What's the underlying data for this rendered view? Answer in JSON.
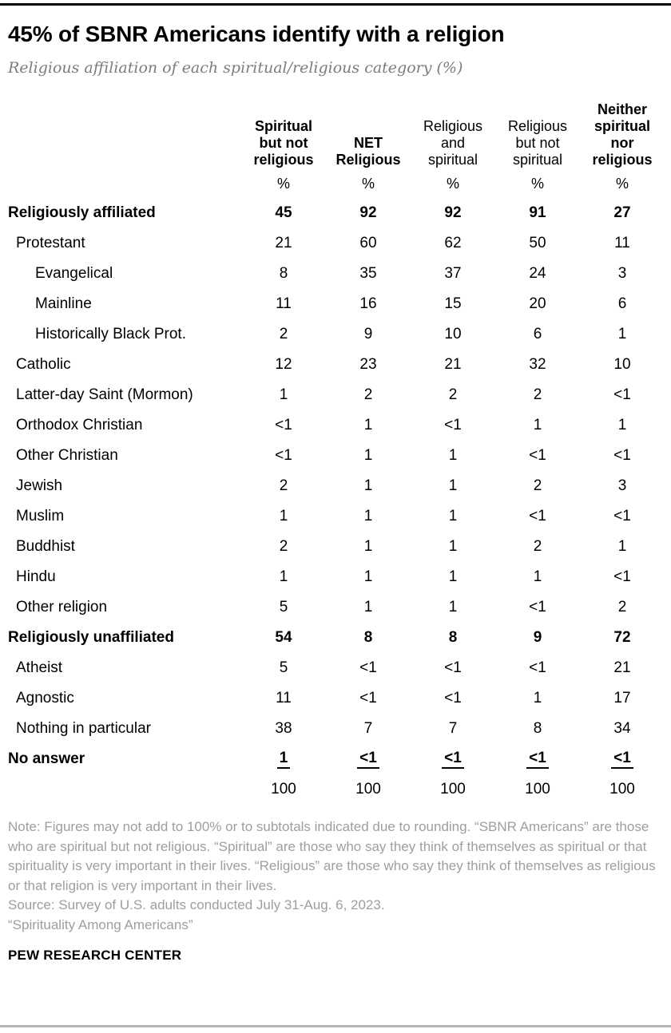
{
  "header": {
    "title": "45% of SBNR Americans identify with a religion",
    "subtitle": "Religious affiliation of each spiritual/religious category (%)"
  },
  "table": {
    "column_display": [
      {
        "label": "Spiritual\nbut not\nreligious",
        "bold": true
      },
      {
        "label": "NET\nReligious",
        "bold": true
      },
      {
        "label": "Religious\nand\nspiritual",
        "bold": false
      },
      {
        "label": "Religious\nbut not\nspiritual",
        "bold": false
      },
      {
        "label": "Neither\nspiritual\nnor\nreligious",
        "bold": true
      }
    ],
    "percent_symbol": "%"
  },
  "chart_data": {
    "type": "table",
    "title": "45% of SBNR Americans identify with a religion",
    "subtitle": "Religious affiliation of each spiritual/religious category (%)",
    "unit": "%",
    "columns": [
      "Spiritual but not religious",
      "NET Religious",
      "Religious and spiritual",
      "Religious but not spiritual",
      "Neither spiritual nor religious"
    ],
    "rows": [
      {
        "label": "Religiously affiliated",
        "indent": 0,
        "bold": true,
        "underline": false,
        "values": [
          "45",
          "92",
          "92",
          "91",
          "27"
        ]
      },
      {
        "label": "Protestant",
        "indent": 1,
        "bold": false,
        "underline": false,
        "values": [
          "21",
          "60",
          "62",
          "50",
          "11"
        ]
      },
      {
        "label": "Evangelical",
        "indent": 2,
        "bold": false,
        "underline": false,
        "values": [
          "8",
          "35",
          "37",
          "24",
          "3"
        ]
      },
      {
        "label": "Mainline",
        "indent": 2,
        "bold": false,
        "underline": false,
        "values": [
          "11",
          "16",
          "15",
          "20",
          "6"
        ]
      },
      {
        "label": "Historically Black Prot.",
        "indent": 2,
        "bold": false,
        "underline": false,
        "values": [
          "2",
          "9",
          "10",
          "6",
          "1"
        ]
      },
      {
        "label": "Catholic",
        "indent": 1,
        "bold": false,
        "underline": false,
        "values": [
          "12",
          "23",
          "21",
          "32",
          "10"
        ]
      },
      {
        "label": "Latter-day Saint (Mormon)",
        "indent": 1,
        "bold": false,
        "underline": false,
        "values": [
          "1",
          "2",
          "2",
          "2",
          "<1"
        ]
      },
      {
        "label": "Orthodox Christian",
        "indent": 1,
        "bold": false,
        "underline": false,
        "values": [
          "<1",
          "1",
          "<1",
          "1",
          "1"
        ]
      },
      {
        "label": "Other Christian",
        "indent": 1,
        "bold": false,
        "underline": false,
        "values": [
          "<1",
          "1",
          "1",
          "<1",
          "<1"
        ]
      },
      {
        "label": "Jewish",
        "indent": 1,
        "bold": false,
        "underline": false,
        "values": [
          "2",
          "1",
          "1",
          "2",
          "3"
        ]
      },
      {
        "label": "Muslim",
        "indent": 1,
        "bold": false,
        "underline": false,
        "values": [
          "1",
          "1",
          "1",
          "<1",
          "<1"
        ]
      },
      {
        "label": "Buddhist",
        "indent": 1,
        "bold": false,
        "underline": false,
        "values": [
          "2",
          "1",
          "1",
          "2",
          "1"
        ]
      },
      {
        "label": "Hindu",
        "indent": 1,
        "bold": false,
        "underline": false,
        "values": [
          "1",
          "1",
          "1",
          "1",
          "<1"
        ]
      },
      {
        "label": "Other religion",
        "indent": 1,
        "bold": false,
        "underline": false,
        "values": [
          "5",
          "1",
          "1",
          "<1",
          "2"
        ]
      },
      {
        "label": "Religiously unaffiliated",
        "indent": 0,
        "bold": true,
        "underline": false,
        "values": [
          "54",
          "8",
          "8",
          "9",
          "72"
        ]
      },
      {
        "label": "Atheist",
        "indent": 1,
        "bold": false,
        "underline": false,
        "values": [
          "5",
          "<1",
          "<1",
          "<1",
          "21"
        ]
      },
      {
        "label": "Agnostic",
        "indent": 1,
        "bold": false,
        "underline": false,
        "values": [
          "11",
          "<1",
          "<1",
          "1",
          "17"
        ]
      },
      {
        "label": "Nothing in particular",
        "indent": 1,
        "bold": false,
        "underline": false,
        "values": [
          "38",
          "7",
          "7",
          "8",
          "34"
        ]
      },
      {
        "label": "No answer",
        "indent": 0,
        "bold": true,
        "underline": true,
        "values": [
          "1",
          "<1",
          "<1",
          "<1",
          "<1"
        ]
      },
      {
        "label": "",
        "indent": 0,
        "bold": false,
        "underline": false,
        "values": [
          "100",
          "100",
          "100",
          "100",
          "100"
        ]
      }
    ]
  },
  "footer": {
    "note": "Note: Figures may not add to 100% or to subtotals indicated due to rounding. “SBNR Americans” are those who are spiritual but not religious. “Spiritual” are those who say they think of themselves as spiritual or that spirituality is very important in their lives. “Religious” are those who say they think of themselves as religious or that religion is very important in their lives.",
    "source": "Source: Survey of U.S. adults conducted July 31-Aug. 6, 2023.",
    "report_title": "“Spirituality Among Americans”",
    "brand": "PEW RESEARCH CENTER"
  },
  "colors": {
    "title_black": "#000000",
    "subtitle_gray": "#7c7c7c",
    "note_gray": "#9e9e9e",
    "top_rule": "#000000",
    "bottom_rule": "#b5b5b5"
  }
}
